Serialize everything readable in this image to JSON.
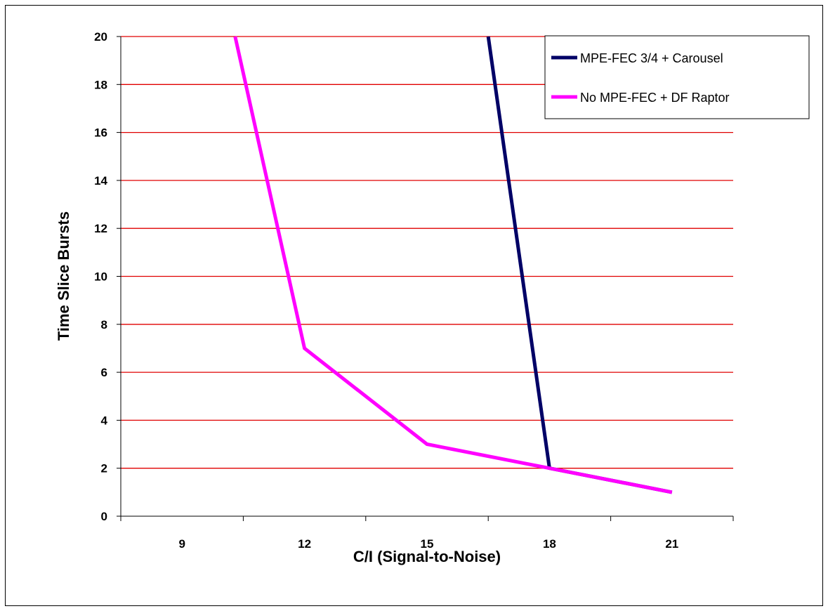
{
  "chart_data": {
    "type": "line",
    "title": "",
    "xlabel": "C/I (Signal-to-Noise)",
    "ylabel": "Time Slice Bursts",
    "categories": [
      "9",
      "12",
      "15",
      "18",
      "21"
    ],
    "x_range": [
      7.5,
      22.5
    ],
    "ylim": [
      0,
      20
    ],
    "y_ticks": [
      0,
      2,
      4,
      6,
      8,
      10,
      12,
      14,
      16,
      18,
      20
    ],
    "grid": "horizontal",
    "grid_color": "#e00000",
    "legend_position": "top-right",
    "series": [
      {
        "name": "MPE-FEC 3/4 + Carousel",
        "color": "#000066",
        "points": [
          [
            16.5,
            20
          ],
          [
            18,
            2
          ],
          [
            21,
            1
          ]
        ]
      },
      {
        "name": "No MPE-FEC + DF Raptor",
        "color": "#ff00ff",
        "points": [
          [
            10.3,
            20
          ],
          [
            12,
            7
          ],
          [
            15,
            3
          ],
          [
            18,
            2
          ],
          [
            21,
            1
          ]
        ]
      }
    ]
  }
}
